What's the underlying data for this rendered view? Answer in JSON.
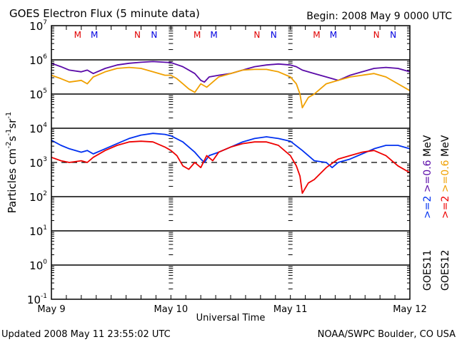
{
  "chart_data": {
    "type": "line",
    "title": "GOES Electron Flux (5 minute data)",
    "begin_label": "Begin: 2008 May 9 0000 UTC",
    "xlabel": "Universal Time",
    "ylabel": "Particles cm⁻²s⁻¹sr⁻¹",
    "ylabel_parts": [
      "Particles cm",
      "-2",
      "s",
      "-1",
      "sr",
      "-1"
    ],
    "yscale": "log",
    "ylim_exp": [
      -1,
      7
    ],
    "y_ticks": [
      {
        "base": "10",
        "exp": "7"
      },
      {
        "base": "10",
        "exp": "6"
      },
      {
        "base": "10",
        "exp": "5"
      },
      {
        "base": "10",
        "exp": "4"
      },
      {
        "base": "10",
        "exp": "3"
      },
      {
        "base": "10",
        "exp": "2"
      },
      {
        "base": "10",
        "exp": "1"
      },
      {
        "base": "10",
        "exp": "0"
      },
      {
        "base": "10",
        "exp": "-1"
      }
    ],
    "x_ticks": [
      "May 9",
      "May 10",
      "May 11",
      "May 12"
    ],
    "xlim_days": [
      0,
      3
    ],
    "threshold_exp": 3,
    "solid_gridlines_exp": [
      6,
      5,
      4,
      2,
      1,
      0
    ],
    "markers": [
      {
        "label": "M",
        "day": 0.22,
        "color": "#e00000"
      },
      {
        "label": "M",
        "day": 0.36,
        "color": "#0000e0"
      },
      {
        "label": "N",
        "day": 0.72,
        "color": "#e00000"
      },
      {
        "label": "N",
        "day": 0.86,
        "color": "#0000e0"
      },
      {
        "label": "M",
        "day": 1.22,
        "color": "#e00000"
      },
      {
        "label": "M",
        "day": 1.36,
        "color": "#0000e0"
      },
      {
        "label": "N",
        "day": 1.72,
        "color": "#e00000"
      },
      {
        "label": "N",
        "day": 1.86,
        "color": "#0000e0"
      },
      {
        "label": "M",
        "day": 2.22,
        "color": "#e00000"
      },
      {
        "label": "M",
        "day": 2.36,
        "color": "#0000e0"
      },
      {
        "label": "N",
        "day": 2.72,
        "color": "#e00000"
      },
      {
        "label": "N",
        "day": 2.86,
        "color": "#0000e0"
      }
    ],
    "series": [
      {
        "name": "GOES11 >=0.6 MeV",
        "color": "#5a0aa8",
        "x_days": [
          0,
          0.08,
          0.15,
          0.25,
          0.3,
          0.35,
          0.45,
          0.55,
          0.65,
          0.75,
          0.85,
          0.95,
          1.0,
          1.1,
          1.2,
          1.25,
          1.28,
          1.32,
          1.4,
          1.5,
          1.6,
          1.7,
          1.8,
          1.9,
          2.0,
          2.05,
          2.1,
          2.2,
          2.3,
          2.4,
          2.5,
          2.6,
          2.7,
          2.8,
          2.9,
          3.0
        ],
        "log10_values": [
          5.9,
          5.8,
          5.7,
          5.65,
          5.7,
          5.6,
          5.75,
          5.85,
          5.9,
          5.93,
          5.95,
          5.93,
          5.92,
          5.8,
          5.6,
          5.4,
          5.35,
          5.5,
          5.55,
          5.6,
          5.7,
          5.8,
          5.85,
          5.88,
          5.85,
          5.8,
          5.7,
          5.6,
          5.5,
          5.4,
          5.55,
          5.65,
          5.75,
          5.78,
          5.75,
          5.65
        ]
      },
      {
        "name": "GOES12 >=0.6 MeV",
        "color": "#f0a000",
        "x_days": [
          0,
          0.08,
          0.15,
          0.25,
          0.3,
          0.35,
          0.45,
          0.55,
          0.65,
          0.75,
          0.85,
          0.95,
          1.0,
          1.05,
          1.1,
          1.15,
          1.2,
          1.25,
          1.3,
          1.35,
          1.4,
          1.5,
          1.6,
          1.7,
          1.8,
          1.9,
          2.0,
          2.05,
          2.08,
          2.1,
          2.15,
          2.2,
          2.3,
          2.4,
          2.5,
          2.6,
          2.7,
          2.8,
          2.9,
          3.0
        ],
        "log10_values": [
          5.55,
          5.45,
          5.35,
          5.4,
          5.3,
          5.5,
          5.65,
          5.75,
          5.78,
          5.75,
          5.65,
          5.55,
          5.55,
          5.45,
          5.3,
          5.15,
          5.05,
          5.3,
          5.2,
          5.35,
          5.5,
          5.6,
          5.7,
          5.72,
          5.72,
          5.65,
          5.5,
          5.3,
          5.0,
          4.6,
          4.9,
          5.0,
          5.3,
          5.4,
          5.5,
          5.55,
          5.6,
          5.5,
          5.3,
          5.1
        ]
      },
      {
        "name": "GOES11 >=2 MeV",
        "color": "#0030f0",
        "x_days": [
          0,
          0.08,
          0.15,
          0.25,
          0.3,
          0.35,
          0.45,
          0.55,
          0.65,
          0.75,
          0.85,
          0.95,
          1.0,
          1.1,
          1.2,
          1.25,
          1.28,
          1.32,
          1.4,
          1.5,
          1.6,
          1.7,
          1.8,
          1.9,
          2.0,
          2.1,
          2.2,
          2.3,
          2.35,
          2.4,
          2.5,
          2.6,
          2.7,
          2.8,
          2.9,
          3.0
        ],
        "log10_values": [
          3.65,
          3.5,
          3.4,
          3.3,
          3.35,
          3.25,
          3.4,
          3.55,
          3.7,
          3.8,
          3.85,
          3.82,
          3.78,
          3.6,
          3.3,
          3.1,
          3.0,
          3.2,
          3.3,
          3.45,
          3.6,
          3.7,
          3.75,
          3.7,
          3.62,
          3.35,
          3.05,
          3.0,
          2.85,
          3.0,
          3.1,
          3.25,
          3.4,
          3.5,
          3.5,
          3.4
        ]
      },
      {
        "name": "GOES12 >=2 MeV",
        "color": "#ee0000",
        "x_days": [
          0,
          0.08,
          0.15,
          0.25,
          0.3,
          0.35,
          0.45,
          0.55,
          0.65,
          0.75,
          0.85,
          0.95,
          1.0,
          1.05,
          1.1,
          1.15,
          1.2,
          1.25,
          1.3,
          1.35,
          1.4,
          1.5,
          1.6,
          1.7,
          1.8,
          1.9,
          2.0,
          2.05,
          2.08,
          2.1,
          2.15,
          2.2,
          2.3,
          2.4,
          2.5,
          2.6,
          2.7,
          2.8,
          2.9,
          3.0
        ],
        "log10_values": [
          3.15,
          3.05,
          3.0,
          3.05,
          3.0,
          3.15,
          3.35,
          3.5,
          3.6,
          3.62,
          3.6,
          3.45,
          3.35,
          3.2,
          2.9,
          2.8,
          3.0,
          2.85,
          3.2,
          3.05,
          3.3,
          3.45,
          3.55,
          3.6,
          3.6,
          3.5,
          3.2,
          2.9,
          2.6,
          2.1,
          2.4,
          2.5,
          2.85,
          3.1,
          3.2,
          3.3,
          3.35,
          3.2,
          2.9,
          2.7
        ]
      }
    ],
    "legend_right": [
      {
        "text": "GOES11",
        "color": "#000000"
      },
      {
        "text": "GOES12",
        "color": "#000000"
      }
    ],
    "legend_energy_col1": [
      {
        "text": ">=2",
        "color": "#0030f0"
      },
      {
        "text": ">=0.6",
        "color": "#5a0aa8"
      },
      {
        "text": "MeV",
        "color": "#000000"
      }
    ],
    "legend_energy_col2": [
      {
        "text": ">=2",
        "color": "#ee0000"
      },
      {
        "text": ">=0.6",
        "color": "#f0a000"
      },
      {
        "text": "MeV",
        "color": "#000000"
      }
    ]
  },
  "footer": {
    "updated": "Updated 2008 May 11 23:55:02 UTC",
    "source": "NOAA/SWPC Boulder, CO USA"
  }
}
